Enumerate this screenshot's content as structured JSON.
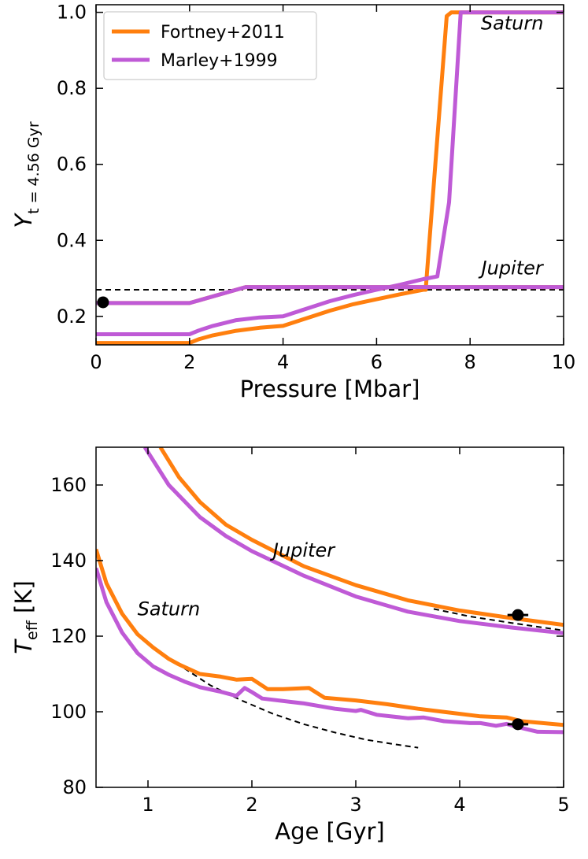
{
  "colors": {
    "fortney": "#ff7f0e",
    "marley": "#bf5ad6",
    "reference": "#000000"
  },
  "chart_data": [
    {
      "type": "line",
      "xlabel": "Pressure [Mbar]",
      "ylabel_main": "Y",
      "ylabel_sub": "t = 4.56 Gyr",
      "xlim": [
        0,
        10
      ],
      "ylim": [
        0.125,
        1.02
      ],
      "xticks": [
        0,
        2,
        4,
        6,
        8,
        10
      ],
      "yticks": [
        0.2,
        0.4,
        0.6,
        0.8,
        1.0
      ],
      "xtick_labels": [
        "0",
        "2",
        "4",
        "6",
        "8",
        "10"
      ],
      "ytick_labels": [
        "0.2",
        "0.4",
        "0.6",
        "0.8",
        "1.0"
      ],
      "grid": false,
      "legend_position": "top-left",
      "legend": [
        {
          "label": "Fortney+2011",
          "color_key": "fortney"
        },
        {
          "label": "Marley+1999",
          "color_key": "marley"
        }
      ],
      "annotations": [
        {
          "text": "Saturn",
          "x": 8.9,
          "y": 0.955
        },
        {
          "text": "Jupiter",
          "x": 8.9,
          "y": 0.31
        }
      ],
      "series": [
        {
          "name": "Fortney+2011",
          "color_key": "fortney",
          "planet": "Saturn",
          "x": [
            0,
            2,
            2.2,
            2.5,
            3,
            3.5,
            4,
            4.5,
            5,
            5.5,
            6,
            6.5,
            7,
            7.05,
            7.5,
            7.6,
            10
          ],
          "y": [
            0.13,
            0.13,
            0.14,
            0.15,
            0.162,
            0.17,
            0.175,
            0.195,
            0.215,
            0.232,
            0.245,
            0.258,
            0.27,
            0.27,
            0.99,
            1.0,
            1.0
          ]
        },
        {
          "name": "Marley+1999",
          "color_key": "marley",
          "planet": "Saturn",
          "x": [
            0,
            2,
            2.2,
            2.5,
            3,
            3.5,
            4,
            4.5,
            5,
            5.5,
            6,
            6.5,
            7,
            7.3,
            7.55,
            7.8,
            10
          ],
          "y": [
            0.153,
            0.153,
            0.163,
            0.175,
            0.19,
            0.197,
            0.2,
            0.22,
            0.24,
            0.256,
            0.27,
            0.283,
            0.298,
            0.305,
            0.5,
            1.0,
            1.0
          ]
        },
        {
          "name": "Fortney+2011",
          "color_key": "fortney",
          "planet": "Jupiter",
          "x": [
            0,
            2,
            3.2,
            7.05,
            10
          ],
          "y": [
            0.235,
            0.235,
            0.277,
            0.277,
            0.277
          ]
        },
        {
          "name": "Marley+1999",
          "color_key": "marley",
          "planet": "Jupiter",
          "x": [
            0,
            2,
            3.2,
            10
          ],
          "y": [
            0.235,
            0.235,
            0.277,
            0.277
          ]
        }
      ],
      "reference_lines": [
        {
          "style": "dashed",
          "x": [
            0,
            10
          ],
          "y": [
            0.27,
            0.27
          ]
        }
      ],
      "points": [
        {
          "x": 0.15,
          "y": 0.237
        }
      ]
    },
    {
      "type": "line",
      "xlabel": "Age [Gyr]",
      "ylabel_main": "T",
      "ylabel_sub": "eff",
      "ylabel_rest": " [K]",
      "xlim": [
        0.5,
        5
      ],
      "ylim": [
        80,
        170
      ],
      "xticks": [
        1,
        2,
        3,
        4,
        5
      ],
      "yticks": [
        80,
        100,
        120,
        140,
        160
      ],
      "xtick_labels": [
        "1",
        "2",
        "3",
        "4",
        "5"
      ],
      "ytick_labels": [
        "80",
        "100",
        "120",
        "140",
        "160"
      ],
      "grid": false,
      "annotations": [
        {
          "text": "Jupiter",
          "x": 2.5,
          "y": 141
        },
        {
          "text": "Saturn",
          "x": 1.2,
          "y": 125.5
        }
      ],
      "series": [
        {
          "name": "Fortney+2011",
          "color_key": "fortney",
          "planet": "Jupiter",
          "x": [
            1.12,
            1.3,
            1.5,
            1.75,
            2,
            2.5,
            3,
            3.5,
            4,
            4.5,
            5
          ],
          "y": [
            170,
            162,
            155.5,
            149.5,
            145.5,
            138.5,
            133.5,
            129.5,
            126.8,
            124.8,
            123
          ]
        },
        {
          "name": "Marley+1999",
          "color_key": "marley",
          "planet": "Jupiter",
          "x": [
            0.97,
            1.2,
            1.5,
            1.75,
            2,
            2.5,
            3,
            3.5,
            4,
            4.5,
            5
          ],
          "y": [
            170,
            160,
            151.5,
            146.5,
            142.5,
            136,
            130.5,
            126.5,
            124,
            122.3,
            120.8
          ]
        },
        {
          "name": "Fortney+2011",
          "color_key": "fortney",
          "planet": "Saturn",
          "x": [
            0.5,
            0.6,
            0.75,
            0.9,
            1.05,
            1.2,
            1.3,
            1.5,
            1.7,
            1.85,
            2.0,
            2.15,
            2.3,
            2.55,
            2.7,
            3.0,
            3.3,
            3.6,
            3.9,
            4.2,
            4.45,
            4.6,
            5.0
          ],
          "y": [
            143,
            134,
            126,
            120.5,
            117,
            114,
            112.5,
            110,
            109.3,
            108.5,
            108.7,
            106,
            106,
            106.3,
            103.7,
            103,
            102,
            100.8,
            99.8,
            98.8,
            98.5,
            97.5,
            96.5
          ]
        },
        {
          "name": "Marley+1999",
          "color_key": "marley",
          "planet": "Saturn",
          "x": [
            0.5,
            0.6,
            0.75,
            0.9,
            1.05,
            1.2,
            1.35,
            1.5,
            1.7,
            1.85,
            1.93,
            2.0,
            2.1,
            2.5,
            2.8,
            3.0,
            3.05,
            3.2,
            3.5,
            3.65,
            3.85,
            4.1,
            4.2,
            4.35,
            4.45,
            4.55,
            4.75,
            5.0
          ],
          "y": [
            138,
            129,
            121,
            115.5,
            112,
            109.8,
            108,
            106.5,
            105.3,
            104.2,
            106.3,
            105.2,
            103.5,
            102.2,
            100.8,
            100.2,
            100.5,
            99.2,
            98.3,
            98.5,
            97.5,
            97,
            97,
            96.3,
            96.8,
            96,
            94.7,
            94.6
          ]
        }
      ],
      "reference_lines": [
        {
          "style": "dashed",
          "x": [
            1.35,
            1.6,
            1.9,
            2.2,
            2.5,
            2.8,
            3.1,
            3.4,
            3.6
          ],
          "y": [
            111.5,
            107,
            103,
            99.5,
            96.7,
            94.5,
            92.6,
            91.3,
            90.5
          ]
        },
        {
          "style": "dashed",
          "x": [
            3.75,
            4.1,
            4.5,
            5.0
          ],
          "y": [
            127.2,
            125.2,
            123.5,
            121.5
          ]
        }
      ],
      "points": [
        {
          "x": 4.56,
          "y": 125.6,
          "xerr": 0.1
        },
        {
          "x": 4.56,
          "y": 96.7,
          "xerr": 0.1
        }
      ]
    }
  ]
}
